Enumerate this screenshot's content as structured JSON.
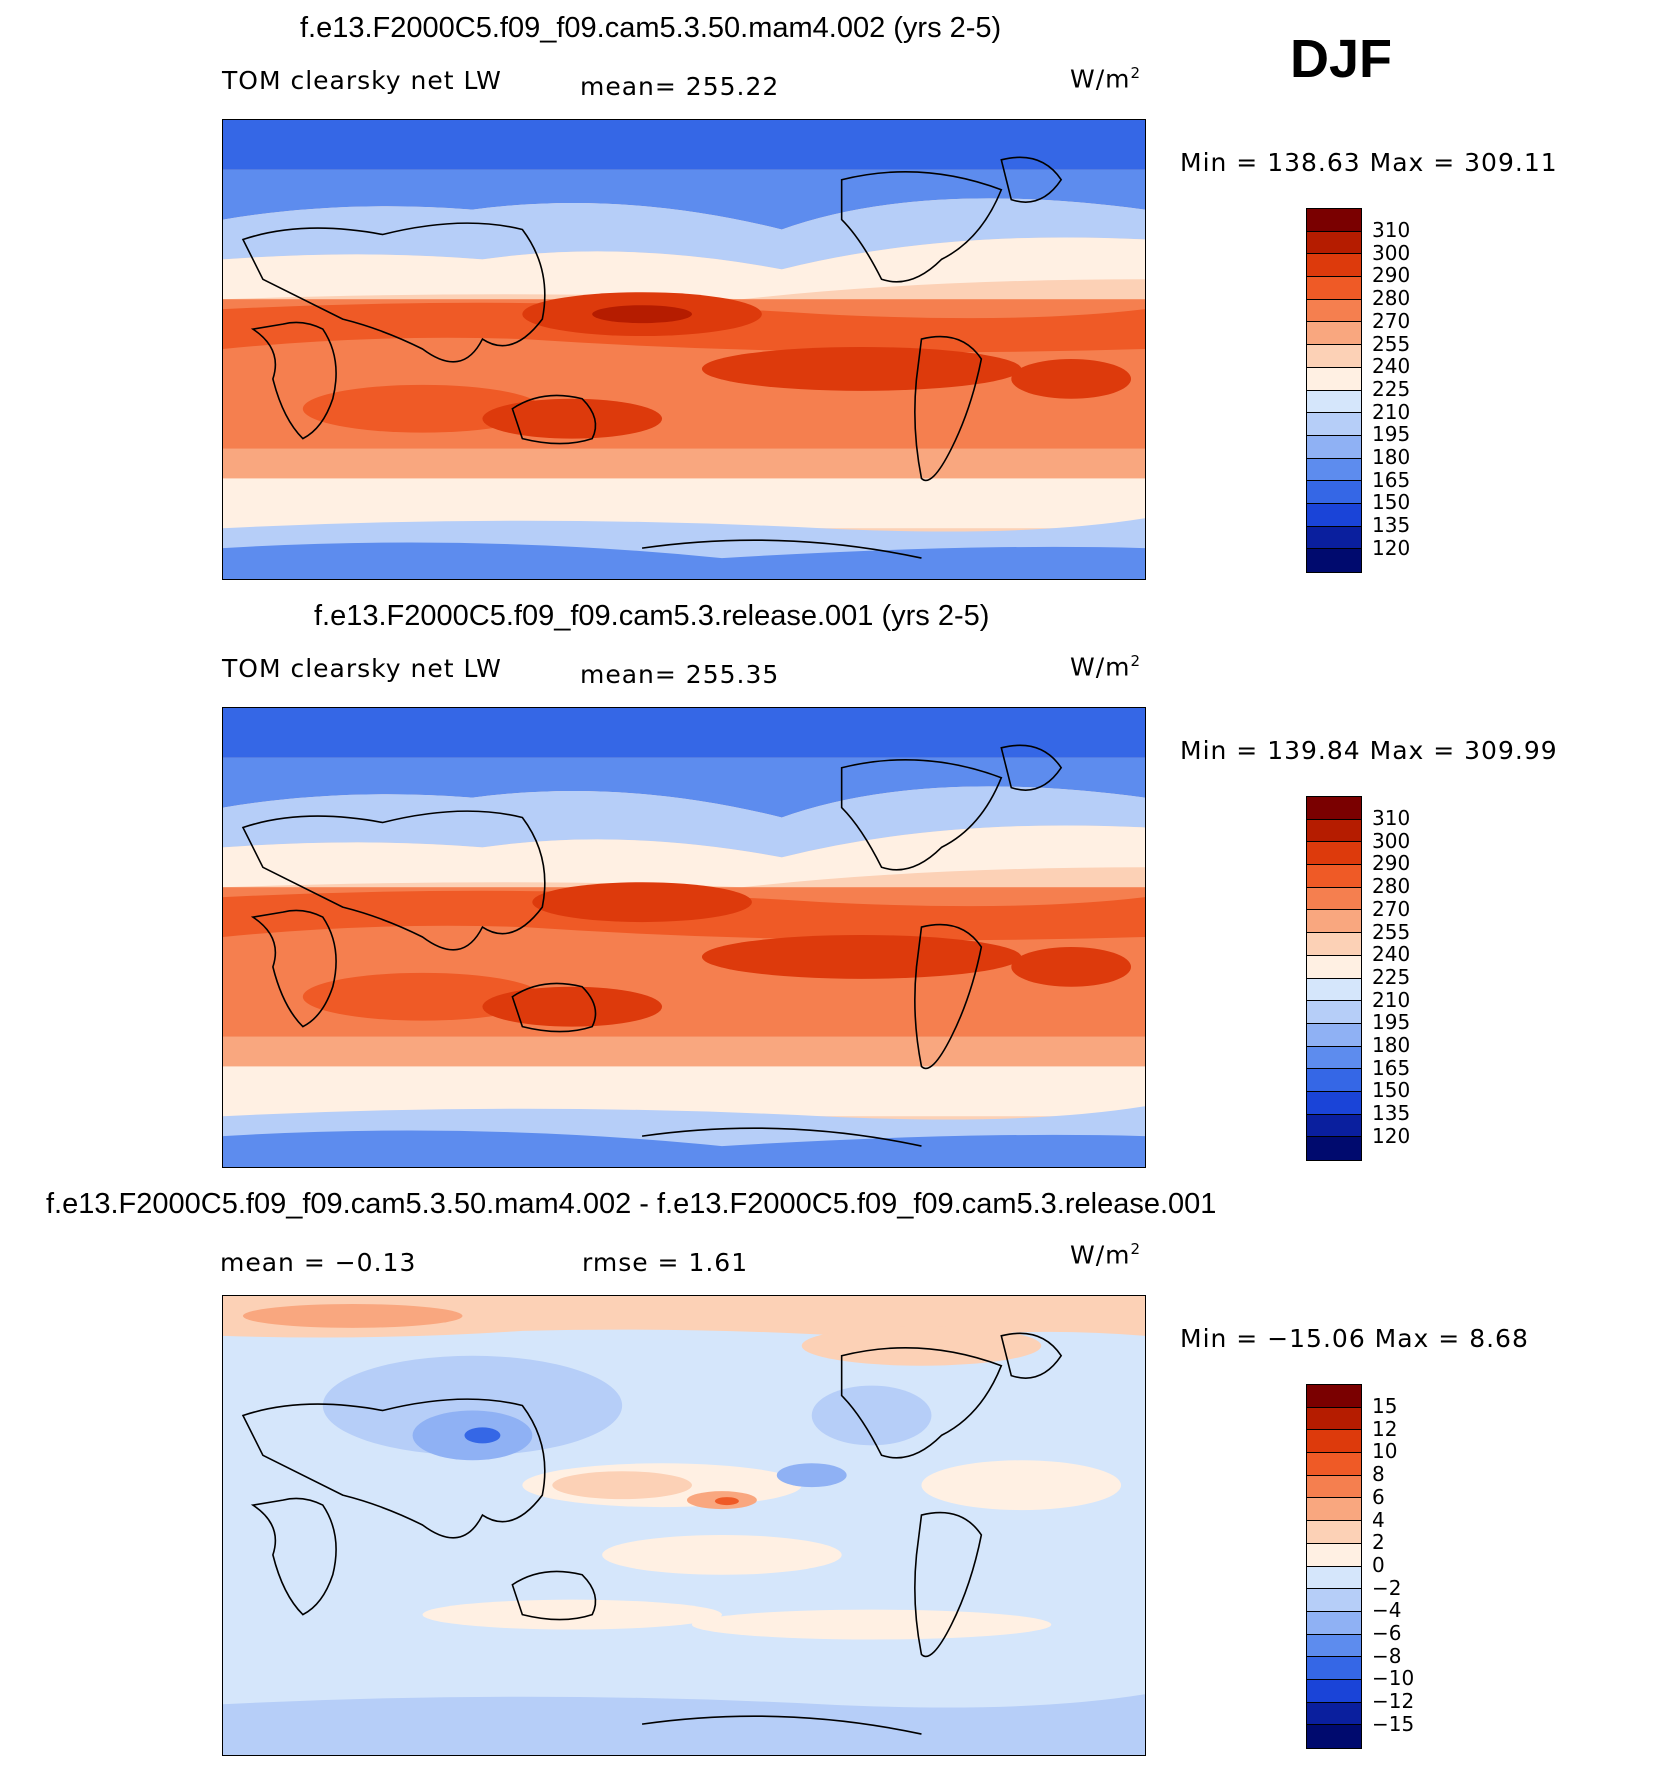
{
  "season": "DJF",
  "panels": [
    {
      "title": "f.e13.F2000C5.f09_f09.cam5.3.50.mam4.002 (yrs 2-5)",
      "left_label": "TOM clearsky net LW",
      "center_label": "mean=  255.22",
      "units": "W/m",
      "units_sup": "2",
      "minmax": "Min  =  138.63  Max  =  309.11",
      "levels": [
        "310",
        "300",
        "290",
        "280",
        "270",
        "255",
        "240",
        "225",
        "210",
        "195",
        "180",
        "165",
        "150",
        "135",
        "120"
      ]
    },
    {
      "title": "f.e13.F2000C5.f09_f09.cam5.3.release.001 (yrs 2-5)",
      "left_label": "TOM clearsky net LW",
      "center_label": "mean=  255.35",
      "units": "W/m",
      "units_sup": "2",
      "minmax": "Min  =  139.84  Max  =  309.99",
      "levels": [
        "310",
        "300",
        "290",
        "280",
        "270",
        "255",
        "240",
        "225",
        "210",
        "195",
        "180",
        "165",
        "150",
        "135",
        "120"
      ]
    },
    {
      "title": "f.e13.F2000C5.f09_f09.cam5.3.50.mam4.002 - f.e13.F2000C5.f09_f09.cam5.3.release.001",
      "left_label": "mean  =    −0.13",
      "center_label": "rmse  =     1.61",
      "units": "W/m",
      "units_sup": "2",
      "minmax": "Min  =  −15.06  Max  =     8.68",
      "levels": [
        "15",
        "12",
        "10",
        "8",
        "6",
        "4",
        "2",
        "0",
        "−2",
        "−4",
        "−6",
        "−8",
        "−10",
        "−12",
        "−15"
      ]
    }
  ],
  "colors": {
    "abs_scale": [
      "#7a0000",
      "#b51c00",
      "#dd3a0c",
      "#ef5a26",
      "#f57f4f",
      "#f9a77f",
      "#fcd1b6",
      "#fff0e3",
      "#d5e6fb",
      "#b6cef8",
      "#8fb1f4",
      "#5d8cee",
      "#3567e6",
      "#1a44d8",
      "#0a1f9e",
      "#000a6e"
    ],
    "diff_scale": [
      "#7a0000",
      "#b51c00",
      "#dd3a0c",
      "#ef5a26",
      "#f57f4f",
      "#f9a77f",
      "#fcd1b6",
      "#fff0e3",
      "#d5e6fb",
      "#b6cef8",
      "#8fb1f4",
      "#5d8cee",
      "#3567e6",
      "#1a44d8",
      "#0a1f9e",
      "#000a6e"
    ]
  }
}
